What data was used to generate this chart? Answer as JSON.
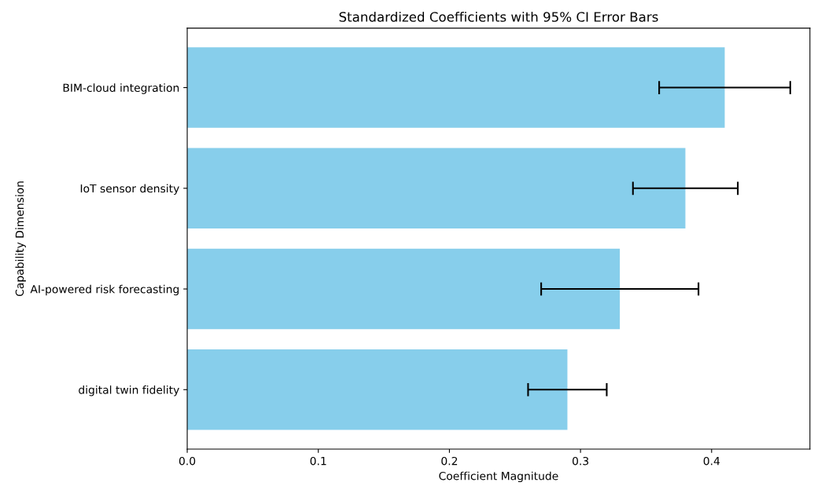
{
  "chart_data": {
    "type": "bar",
    "orientation": "horizontal",
    "title": "Standardized Coefficients with 95% CI Error Bars",
    "xlabel": "Coefficient Magnitude",
    "ylabel": "Capability Dimension",
    "categories": [
      "BIM-cloud integration",
      "IoT sensor density",
      "AI-powered risk forecasting",
      "digital twin fidelity"
    ],
    "values": [
      0.41,
      0.38,
      0.33,
      0.29
    ],
    "errors": [
      0.05,
      0.04,
      0.06,
      0.03
    ],
    "color": "#87ceeb",
    "xlim": [
      0,
      0.475
    ],
    "xticks": [
      {
        "value": 0,
        "label": "0.0"
      },
      0.1,
      0.2,
      0.3,
      0.4
    ],
    "grid": false
  }
}
